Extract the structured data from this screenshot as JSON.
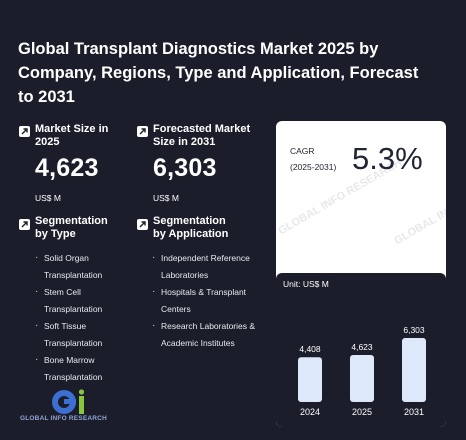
{
  "title": "Global Transplant Diagnostics Market 2025 by Company, Regions, Type and Application, Forecast to 2031",
  "market_size": {
    "label": "Market Size in 2025",
    "value": "4,623",
    "unit": "US$ M"
  },
  "forecast_size": {
    "label": "Forecasted Market Size in 2031",
    "value": "6,303",
    "unit": "US$ M"
  },
  "segmentation_type": {
    "label": "Segmentation by Type",
    "items": [
      "Solid Organ Transplantation",
      "Stem Cell Transplantation",
      "Soft Tissue Transplantation",
      "Bone Marrow Transplantation"
    ]
  },
  "segmentation_application": {
    "label": "Segmentation by Application",
    "items": [
      "Independent Reference Laboratories",
      "Hospitals & Transplant Centers",
      "Research Laboratories & Academic Institutes"
    ]
  },
  "cagr": {
    "label": "CAGR",
    "period": "(2025-2031)",
    "value": "5.3%"
  },
  "chart_unit_label": "Unit: US$ M",
  "watermark_text": "GLOBAL INFO RESEARCH",
  "logo": {
    "text": "GLOBAL INFO RESEARCH"
  },
  "colors": {
    "background": "#1b1d2b",
    "bar": "#dde9fb",
    "panel": "#ffffff"
  },
  "chart_data": {
    "type": "bar",
    "categories": [
      "2024",
      "2025",
      "2031"
    ],
    "values": [
      4408,
      4623,
      6303
    ],
    "data_labels": [
      "4,408",
      "4,623",
      "6,303"
    ],
    "ylabel": "US$ M",
    "grid": false
  }
}
